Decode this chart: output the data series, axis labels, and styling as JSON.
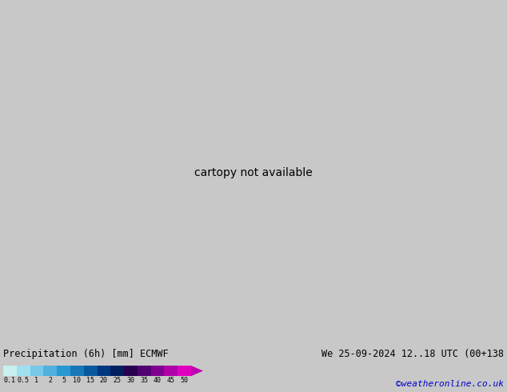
{
  "title_left": "Precipitation (6h) [mm] ECMWF",
  "title_right": "We 25-09-2024 12..18 UTC (00+138",
  "credit": "©weatheronline.co.uk",
  "colorbar_values": [
    0.1,
    0.5,
    1,
    2,
    5,
    10,
    15,
    20,
    25,
    30,
    35,
    40,
    45,
    50
  ],
  "colorbar_colors": [
    "#c8f0f0",
    "#a0e0f0",
    "#78c8e8",
    "#50b0e0",
    "#2898d0",
    "#1878b8",
    "#0858a0",
    "#003880",
    "#002060",
    "#280050",
    "#500070",
    "#800090",
    "#b000a8",
    "#e000c0"
  ],
  "land_color": "#b8e060",
  "sea_color": "#d8f0e8",
  "border_color": "#888888",
  "fig_bg": "#c8c8c8",
  "bottom_bg": "#c8c8c8",
  "font_color_left": "#000000",
  "font_color_right": "#000000",
  "font_color_credit": "#0000cc",
  "extent": [
    19,
    142,
    -2,
    62
  ]
}
